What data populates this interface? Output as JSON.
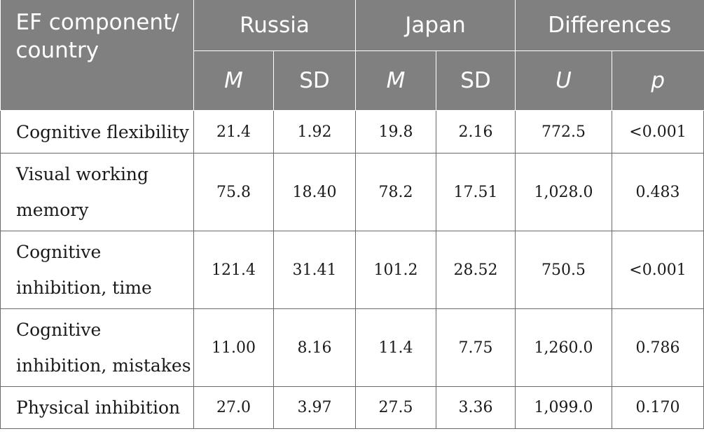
{
  "header": {
    "corner": "EF component/ country",
    "groups": [
      "Russia",
      "Japan",
      "Differences"
    ],
    "subheaders": [
      "M",
      "SD",
      "M",
      "SD",
      "U",
      "p"
    ]
  },
  "rows": [
    {
      "label": "Cognitive flexibility",
      "values": [
        "21.4",
        "1.92",
        "19.8",
        "2.16",
        "772.5",
        "<0.001"
      ]
    },
    {
      "label": "Visual working memory",
      "values": [
        "75.8",
        "18.40",
        "78.2",
        "17.51",
        "1,028.0",
        "0.483"
      ]
    },
    {
      "label": "Cognitive inhibition, time",
      "values": [
        "121.4",
        "31.41",
        "101.2",
        "28.52",
        "750.5",
        "<0.001"
      ]
    },
    {
      "label": "Cognitive inhibition, mistakes",
      "values": [
        "11.00",
        "8.16",
        "11.4",
        "7.75",
        "1,260.0",
        "0.786"
      ]
    },
    {
      "label": "Physical inhibition",
      "values": [
        "27.0",
        "3.97",
        "27.5",
        "3.36",
        "1,099.0",
        "0.170"
      ]
    }
  ],
  "colors": {
    "header_bg": "#808080",
    "header_text": "#ffffff",
    "border": "#6a6a6a"
  }
}
